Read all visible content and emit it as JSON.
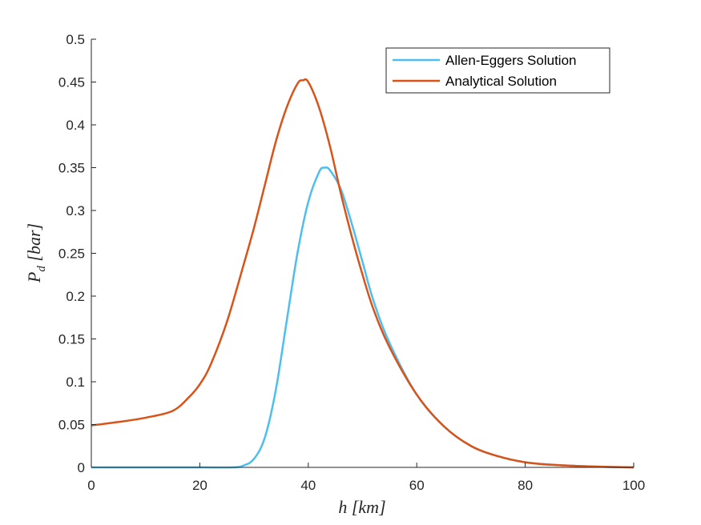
{
  "chart_data": {
    "type": "line",
    "title": "",
    "xlabel": "h [km]",
    "ylabel": "P_d [bar]",
    "xlim": [
      0,
      100
    ],
    "ylim": [
      0,
      0.5
    ],
    "xticks": [
      0,
      20,
      40,
      60,
      80,
      100
    ],
    "yticks": [
      0,
      0.05,
      0.1,
      0.15,
      0.2,
      0.25,
      0.3,
      0.35,
      0.4,
      0.45,
      0.5
    ],
    "grid": false,
    "legend_position": "top-right",
    "series": [
      {
        "name": "Allen-Eggers Solution",
        "color": "#4DBEEE",
        "x": [
          0,
          10,
          20,
          26,
          28,
          30,
          32,
          34,
          36,
          38,
          40,
          42,
          43,
          44,
          46,
          48,
          50,
          52,
          55,
          60,
          65,
          70,
          75,
          80,
          85,
          90,
          95,
          100
        ],
        "y": [
          0,
          0,
          0,
          0,
          0.002,
          0.01,
          0.035,
          0.09,
          0.17,
          0.25,
          0.31,
          0.345,
          0.35,
          0.347,
          0.325,
          0.285,
          0.24,
          0.195,
          0.145,
          0.085,
          0.048,
          0.025,
          0.013,
          0.006,
          0.003,
          0.0015,
          0.0006,
          0
        ]
      },
      {
        "name": "Analytical Solution",
        "color": "#D95319",
        "x": [
          0,
          5,
          10,
          15,
          18,
          20,
          22,
          25,
          28,
          30,
          32,
          34,
          36,
          38,
          39,
          40,
          42,
          44,
          46,
          48,
          50,
          52,
          55,
          60,
          65,
          70,
          75,
          80,
          85,
          90,
          95,
          100
        ],
        "y": [
          0.049,
          0.053,
          0.058,
          0.066,
          0.082,
          0.097,
          0.12,
          0.17,
          0.235,
          0.28,
          0.33,
          0.38,
          0.42,
          0.448,
          0.452,
          0.45,
          0.42,
          0.375,
          0.32,
          0.27,
          0.225,
          0.185,
          0.14,
          0.085,
          0.048,
          0.025,
          0.013,
          0.006,
          0.003,
          0.0015,
          0.0006,
          0
        ]
      }
    ]
  }
}
